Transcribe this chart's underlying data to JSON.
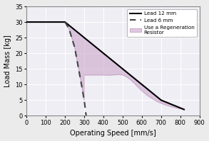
{
  "xlabel": "Operating Speed [mm/s]",
  "ylabel": "Load Mass [kg]",
  "xlim": [
    0,
    900
  ],
  "ylim": [
    0,
    35
  ],
  "xticks": [
    0,
    100,
    200,
    300,
    400,
    500,
    600,
    700,
    800,
    900
  ],
  "yticks": [
    0,
    5,
    10,
    15,
    20,
    25,
    30,
    35
  ],
  "lead12_x": [
    0,
    200,
    500,
    700,
    820
  ],
  "lead12_y": [
    30,
    30,
    15,
    5,
    2
  ],
  "lead6_x": [
    200,
    220,
    250,
    280,
    300,
    310
  ],
  "lead6_y": [
    30,
    28,
    22,
    12,
    5,
    0
  ],
  "regen_color": "#c8a0c8",
  "regen_alpha": 0.55,
  "regen_edge_color": "#b080b0",
  "lead12_color": "#000000",
  "lead6_color": "#444444",
  "bg_color": "#eeeef4",
  "grid_color": "#ffffff",
  "legend_lead12": "Lead 12 mm",
  "legend_lead6": "Lead 6 mm",
  "legend_regen": "Use a Regeneration\nResistor"
}
